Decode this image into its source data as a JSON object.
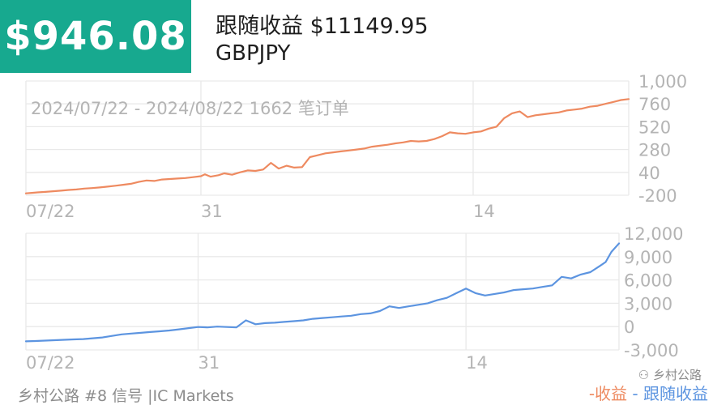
{
  "header": {
    "badge_value": "$946.08",
    "title": "跟随收益 $11149.95",
    "symbol": "GBPJPY"
  },
  "range_text": "2024/07/22 - 2024/08/22 1662 笔订单",
  "footer": {
    "left": "乡村公路 #8 信号 |IC Markets",
    "legend_profit": "-收益",
    "legend_follow": "- 跟随收益",
    "watermark": "乡村公路"
  },
  "colors": {
    "profit": "#ee8a60",
    "follow": "#5c94e0",
    "badge": "#17a98f",
    "grid": "#e9e9e9",
    "tick": "#b4b4b4"
  },
  "chart_data": [
    {
      "type": "line",
      "series": [
        {
          "x": [
            0,
            0.3,
            0.6,
            1,
            1.4,
            1.8,
            2.2,
            2.6,
            3,
            3.4,
            3.8,
            4.2,
            4.6,
            5,
            5.4,
            5.8,
            6.2,
            6.6,
            7,
            7.4,
            7.8,
            8.2,
            8.6,
            9,
            9.2,
            9.5,
            9.9,
            10.2,
            10.6,
            11,
            11.4,
            11.8,
            12.2,
            12.6,
            13,
            13.4,
            13.8,
            14.2,
            14.6,
            15,
            15.4,
            15.8,
            16.2,
            16.6,
            17,
            17.4,
            17.8,
            18.2,
            18.6,
            19,
            19.4,
            19.8,
            20.2,
            20.6,
            21,
            21.4,
            21.8,
            22.2,
            22.6,
            23,
            23.4,
            23.8,
            24.2,
            24.6,
            25,
            25.4,
            25.8,
            26.2,
            26.6,
            27,
            27.4,
            27.8,
            28.2,
            28.6,
            29,
            29.4,
            29.8,
            30.2,
            30.6,
            31
          ],
          "values": [
            -180,
            -175,
            -170,
            -165,
            -158,
            -152,
            -145,
            -140,
            -130,
            -125,
            -118,
            -110,
            -100,
            -90,
            -80,
            -60,
            -45,
            -50,
            -35,
            -30,
            -25,
            -20,
            -10,
            0,
            20,
            -5,
            10,
            30,
            15,
            40,
            60,
            55,
            70,
            140,
            80,
            110,
            90,
            95,
            200,
            220,
            240,
            250,
            260,
            270,
            280,
            290,
            310,
            320,
            330,
            345,
            355,
            370,
            365,
            370,
            390,
            420,
            460,
            450,
            445,
            460,
            470,
            500,
            520,
            610,
            660,
            680,
            620,
            640,
            650,
            660,
            670,
            690,
            700,
            710,
            730,
            740,
            760,
            780,
            800,
            810
          ],
          "name": ""
        }
      ],
      "x_ticks": [
        "07/22",
        "31",
        "14"
      ],
      "y_ticks": [
        "1,000",
        "760",
        "520",
        "280",
        "40",
        "-200"
      ],
      "ylim": [
        -200,
        1000
      ]
    },
    {
      "type": "line",
      "series": [
        {
          "x": [
            0,
            0.5,
            1,
            1.5,
            2,
            2.5,
            3,
            3.5,
            4,
            4.5,
            5,
            5.5,
            6,
            6.5,
            7,
            7.5,
            8,
            8.5,
            9,
            9.5,
            10,
            10.5,
            11,
            11.5,
            12,
            12.5,
            13,
            13.5,
            14,
            14.5,
            15,
            15.5,
            16,
            16.5,
            17,
            17.5,
            18,
            18.5,
            19,
            19.5,
            20,
            20.5,
            21,
            21.5,
            22,
            22.5,
            23,
            23.5,
            24,
            24.5,
            25,
            25.5,
            26,
            26.5,
            27,
            27.5,
            28,
            28.5,
            29,
            29.5,
            30,
            30.3,
            30.6,
            31
          ],
          "values": [
            -1900,
            -1850,
            -1800,
            -1750,
            -1700,
            -1650,
            -1600,
            -1500,
            -1400,
            -1200,
            -1000,
            -900,
            -800,
            -700,
            -600,
            -500,
            -350,
            -200,
            -50,
            -100,
            0,
            -50,
            -100,
            800,
            300,
            450,
            500,
            600,
            700,
            800,
            1000,
            1100,
            1200,
            1300,
            1400,
            1600,
            1700,
            2000,
            2600,
            2400,
            2600,
            2800,
            3000,
            3400,
            3700,
            4300,
            4900,
            4300,
            4000,
            4200,
            4400,
            4700,
            4800,
            4900,
            5100,
            5300,
            6400,
            6200,
            6700,
            7000,
            7800,
            8300,
            9600,
            10700
          ],
          "name": ""
        }
      ],
      "x_ticks": [
        "07/22",
        "31",
        "14"
      ],
      "y_ticks": [
        "12,000",
        "9,000",
        "6,000",
        "3,000",
        "0",
        "-3,000"
      ],
      "ylim": [
        -3000,
        12000
      ]
    }
  ]
}
